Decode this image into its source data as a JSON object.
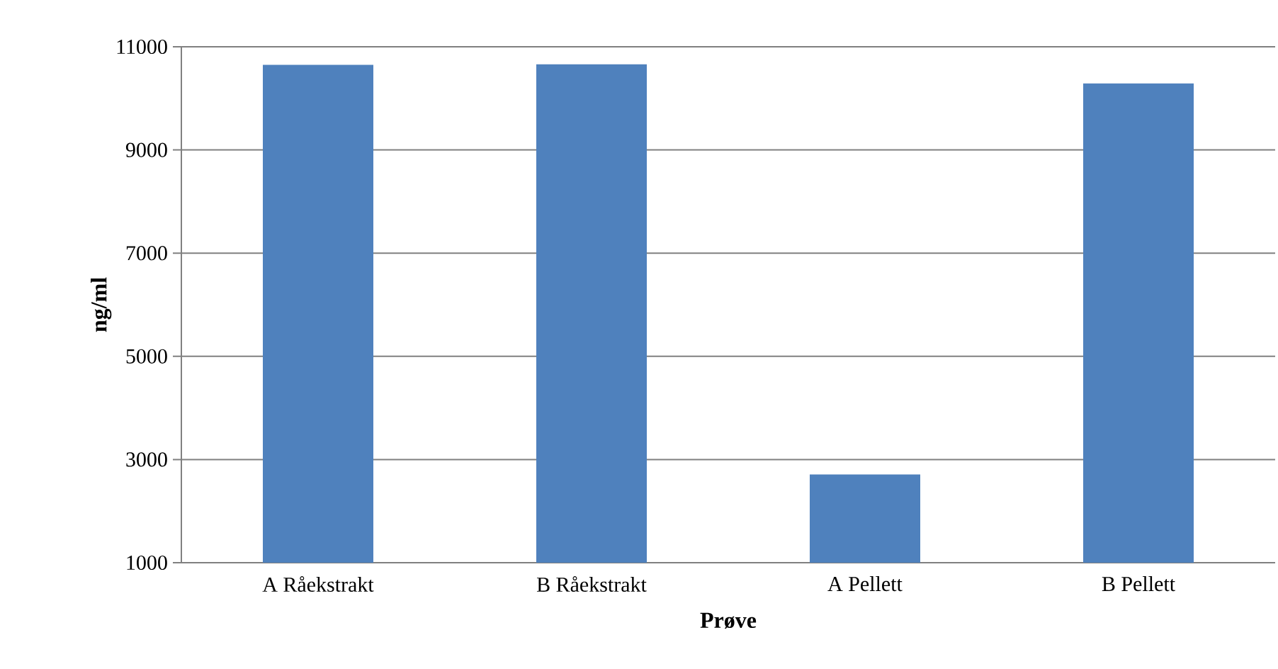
{
  "chart_data": {
    "type": "bar",
    "xlabel": "Prøve",
    "ylabel": "ng/ml",
    "categories": [
      "A Råekstrakt",
      "B Råekstrakt",
      "A Pellett",
      "B Pellett"
    ],
    "values": [
      10650,
      10660,
      2710,
      10290
    ],
    "color": "#4f81bd",
    "ylim": [
      1000,
      11000
    ],
    "yticks": [
      1000,
      3000,
      5000,
      7000,
      9000,
      11000
    ],
    "grid": "y"
  }
}
